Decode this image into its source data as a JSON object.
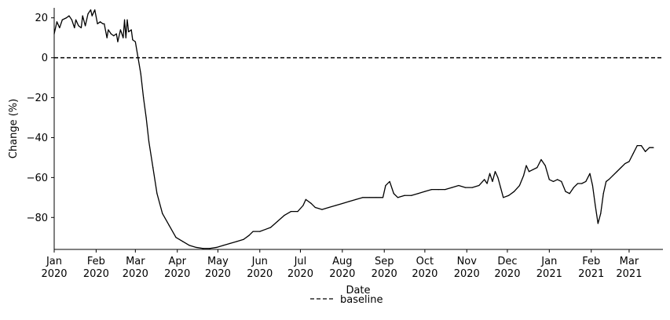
{
  "chart_data": {
    "type": "line",
    "title": "",
    "xlabel": "Date",
    "ylabel": "Change (%)",
    "xlim": [
      "2020-01-01",
      "2021-03-26"
    ],
    "ylim": [
      -96,
      25
    ],
    "y_ticks": [
      20,
      0,
      -20,
      -40,
      -60,
      -80
    ],
    "x_ticks": [
      {
        "date": "2020-01-01",
        "label": [
          "Jan",
          "2020"
        ]
      },
      {
        "date": "2020-02-01",
        "label": [
          "Feb",
          "2020"
        ]
      },
      {
        "date": "2020-03-01",
        "label": [
          "Mar",
          "2020"
        ]
      },
      {
        "date": "2020-04-01",
        "label": [
          "Apr",
          "2020"
        ]
      },
      {
        "date": "2020-05-01",
        "label": [
          "May",
          "2020"
        ]
      },
      {
        "date": "2020-06-01",
        "label": [
          "Jun",
          "2020"
        ]
      },
      {
        "date": "2020-07-01",
        "label": [
          "Jul",
          "2020"
        ]
      },
      {
        "date": "2020-08-01",
        "label": [
          "Aug",
          "2020"
        ]
      },
      {
        "date": "2020-09-01",
        "label": [
          "Sep",
          "2020"
        ]
      },
      {
        "date": "2020-10-01",
        "label": [
          "Oct",
          "2020"
        ]
      },
      {
        "date": "2020-11-01",
        "label": [
          "Nov",
          "2020"
        ]
      },
      {
        "date": "2020-12-01",
        "label": [
          "Dec",
          "2020"
        ]
      },
      {
        "date": "2021-01-01",
        "label": [
          "Jan",
          "2021"
        ]
      },
      {
        "date": "2021-02-01",
        "label": [
          "Feb",
          "2021"
        ]
      },
      {
        "date": "2021-03-01",
        "label": [
          "Mar",
          "2021"
        ]
      }
    ],
    "baseline": {
      "y": 0,
      "name": "baseline",
      "style": "dashed"
    },
    "legend": {
      "position": "bottom-center",
      "entries": [
        "baseline"
      ]
    },
    "grid": false,
    "series": [
      {
        "color": "#000000",
        "points": [
          [
            "2020-01-01",
            12
          ],
          [
            "2020-01-03",
            18
          ],
          [
            "2020-01-05",
            15
          ],
          [
            "2020-01-07",
            19
          ],
          [
            "2020-01-10",
            20
          ],
          [
            "2020-01-12",
            21
          ],
          [
            "2020-01-14",
            19
          ],
          [
            "2020-01-16",
            15
          ],
          [
            "2020-01-17",
            19
          ],
          [
            "2020-01-19",
            16
          ],
          [
            "2020-01-21",
            15
          ],
          [
            "2020-01-22",
            21
          ],
          [
            "2020-01-24",
            16
          ],
          [
            "2020-01-26",
            22
          ],
          [
            "2020-01-28",
            24
          ],
          [
            "2020-01-29",
            21
          ],
          [
            "2020-01-31",
            24
          ],
          [
            "2020-02-02",
            17
          ],
          [
            "2020-02-04",
            18
          ],
          [
            "2020-02-06",
            17
          ],
          [
            "2020-02-07",
            17
          ],
          [
            "2020-02-09",
            10
          ],
          [
            "2020-02-10",
            14
          ],
          [
            "2020-02-12",
            12
          ],
          [
            "2020-02-14",
            11
          ],
          [
            "2020-02-16",
            12
          ],
          [
            "2020-02-17",
            8
          ],
          [
            "2020-02-19",
            14
          ],
          [
            "2020-02-21",
            10
          ],
          [
            "2020-02-22",
            19
          ],
          [
            "2020-02-23",
            10
          ],
          [
            "2020-02-24",
            19
          ],
          [
            "2020-02-25",
            13
          ],
          [
            "2020-02-27",
            14
          ],
          [
            "2020-02-28",
            9
          ],
          [
            "2020-03-01",
            8
          ],
          [
            "2020-03-03",
            0
          ],
          [
            "2020-03-05",
            -8
          ],
          [
            "2020-03-07",
            -20
          ],
          [
            "2020-03-09",
            -30
          ],
          [
            "2020-03-11",
            -42
          ],
          [
            "2020-03-14",
            -55
          ],
          [
            "2020-03-17",
            -68
          ],
          [
            "2020-03-21",
            -78
          ],
          [
            "2020-03-26",
            -84
          ],
          [
            "2020-03-31",
            -90
          ],
          [
            "2020-04-05",
            -92
          ],
          [
            "2020-04-10",
            -94
          ],
          [
            "2020-04-15",
            -95
          ],
          [
            "2020-04-20",
            -95.5
          ],
          [
            "2020-04-25",
            -95.5
          ],
          [
            "2020-04-30",
            -95
          ],
          [
            "2020-05-05",
            -94
          ],
          [
            "2020-05-10",
            -93
          ],
          [
            "2020-05-15",
            -92
          ],
          [
            "2020-05-20",
            -91
          ],
          [
            "2020-05-24",
            -89
          ],
          [
            "2020-05-27",
            -87
          ],
          [
            "2020-06-01",
            -87
          ],
          [
            "2020-06-05",
            -86
          ],
          [
            "2020-06-09",
            -85
          ],
          [
            "2020-06-14",
            -82
          ],
          [
            "2020-06-19",
            -79
          ],
          [
            "2020-06-24",
            -77
          ],
          [
            "2020-06-29",
            -77
          ],
          [
            "2020-07-03",
            -74
          ],
          [
            "2020-07-05",
            -71
          ],
          [
            "2020-07-07",
            -72
          ],
          [
            "2020-07-09",
            -73
          ],
          [
            "2020-07-12",
            -75
          ],
          [
            "2020-07-17",
            -76
          ],
          [
            "2020-07-22",
            -75
          ],
          [
            "2020-07-27",
            -74
          ],
          [
            "2020-08-01",
            -73
          ],
          [
            "2020-08-06",
            -72
          ],
          [
            "2020-08-11",
            -71
          ],
          [
            "2020-08-16",
            -70
          ],
          [
            "2020-08-21",
            -70
          ],
          [
            "2020-08-26",
            -70
          ],
          [
            "2020-08-31",
            -70
          ],
          [
            "2020-09-02",
            -64
          ],
          [
            "2020-09-05",
            -62
          ],
          [
            "2020-09-08",
            -68
          ],
          [
            "2020-09-11",
            -70
          ],
          [
            "2020-09-16",
            -69
          ],
          [
            "2020-09-21",
            -69
          ],
          [
            "2020-09-26",
            -68
          ],
          [
            "2020-10-01",
            -67
          ],
          [
            "2020-10-06",
            -66
          ],
          [
            "2020-10-11",
            -66
          ],
          [
            "2020-10-16",
            -66
          ],
          [
            "2020-10-21",
            -65
          ],
          [
            "2020-10-26",
            -64
          ],
          [
            "2020-10-31",
            -65
          ],
          [
            "2020-11-05",
            -65
          ],
          [
            "2020-11-10",
            -64
          ],
          [
            "2020-11-14",
            -61
          ],
          [
            "2020-11-16",
            -63
          ],
          [
            "2020-11-18",
            -58
          ],
          [
            "2020-11-20",
            -62
          ],
          [
            "2020-11-22",
            -57
          ],
          [
            "2020-11-24",
            -60
          ],
          [
            "2020-11-26",
            -65
          ],
          [
            "2020-11-28",
            -70
          ],
          [
            "2020-12-02",
            -69
          ],
          [
            "2020-12-06",
            -67
          ],
          [
            "2020-12-10",
            -64
          ],
          [
            "2020-12-13",
            -59
          ],
          [
            "2020-12-15",
            -54
          ],
          [
            "2020-12-17",
            -57
          ],
          [
            "2020-12-20",
            -56
          ],
          [
            "2020-12-23",
            -55
          ],
          [
            "2020-12-26",
            -51
          ],
          [
            "2020-12-29",
            -54
          ],
          [
            "2021-01-01",
            -61
          ],
          [
            "2021-01-04",
            -62
          ],
          [
            "2021-01-07",
            -61
          ],
          [
            "2021-01-10",
            -62
          ],
          [
            "2021-01-13",
            -67
          ],
          [
            "2021-01-16",
            -68
          ],
          [
            "2021-01-19",
            -65
          ],
          [
            "2021-01-22",
            -63
          ],
          [
            "2021-01-25",
            -63
          ],
          [
            "2021-01-28",
            -62
          ],
          [
            "2021-01-31",
            -58
          ],
          [
            "2021-02-02",
            -64
          ],
          [
            "2021-02-04",
            -74
          ],
          [
            "2021-02-06",
            -83
          ],
          [
            "2021-02-08",
            -78
          ],
          [
            "2021-02-10",
            -68
          ],
          [
            "2021-02-12",
            -62
          ],
          [
            "2021-02-14",
            -61
          ],
          [
            "2021-02-17",
            -59
          ],
          [
            "2021-02-20",
            -57
          ],
          [
            "2021-02-23",
            -55
          ],
          [
            "2021-02-26",
            -53
          ],
          [
            "2021-03-01",
            -52
          ],
          [
            "2021-03-04",
            -48
          ],
          [
            "2021-03-07",
            -44
          ],
          [
            "2021-03-10",
            -44
          ],
          [
            "2021-03-13",
            -47
          ],
          [
            "2021-03-16",
            -45
          ],
          [
            "2021-03-19",
            -45
          ]
        ]
      }
    ]
  }
}
